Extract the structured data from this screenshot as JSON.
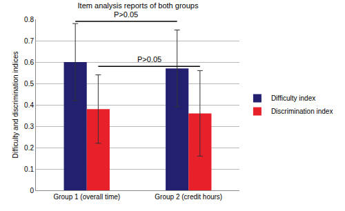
{
  "chart_data": {
    "type": "bar",
    "title": "Item analysis reports of both groups",
    "y_label": "Difficulty and discrimination indices",
    "categories": [
      "Group 1 (overall time)",
      "Group 2 (credit hours)"
    ],
    "series": [
      {
        "name": "Difficulty index",
        "color": "#232070",
        "values": [
          0.6,
          0.57
        ],
        "errors": [
          0.18,
          0.18
        ]
      },
      {
        "name": "Discrimination index",
        "color": "#e8202a",
        "values": [
          0.38,
          0.36
        ],
        "errors": [
          0.16,
          0.2
        ]
      }
    ],
    "ylim": [
      0,
      0.8
    ],
    "yticks": [
      0,
      0.1,
      0.2,
      0.3,
      0.4,
      0.5,
      0.6,
      0.7,
      0.8
    ],
    "grid": true,
    "legend": "right",
    "annotations": [
      {
        "text": "P>0.05",
        "series": "Difficulty index",
        "y": 0.79
      },
      {
        "text": "P>0.05",
        "series": "Discrimination index",
        "y": 0.58
      }
    ]
  }
}
